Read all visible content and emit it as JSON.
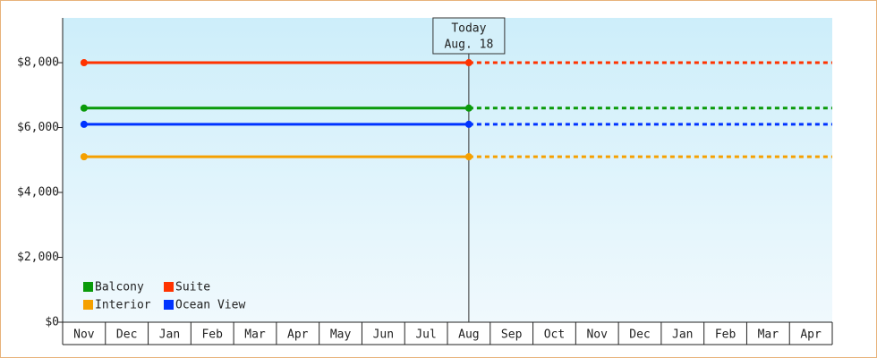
{
  "chart_data": {
    "type": "line",
    "categories": [
      "Nov",
      "Dec",
      "Jan",
      "Feb",
      "Mar",
      "Apr",
      "May",
      "Jun",
      "Jul",
      "Aug",
      "Sep",
      "Oct",
      "Nov",
      "Dec",
      "Jan",
      "Feb",
      "Mar",
      "Apr"
    ],
    "series": [
      {
        "name": "Balcony",
        "color": "#0a9a0a",
        "values": [
          6600,
          6600,
          6600,
          6600,
          6600,
          6600,
          6600,
          6600,
          6600,
          6600,
          null,
          null,
          null,
          null,
          null,
          null,
          null,
          null
        ]
      },
      {
        "name": "Suite",
        "color": "#ff3300",
        "values": [
          8000,
          8000,
          8000,
          8000,
          8000,
          8000,
          8000,
          8000,
          8000,
          8000,
          null,
          null,
          null,
          null,
          null,
          null,
          null,
          null
        ]
      },
      {
        "name": "Interior",
        "color": "#f5a000",
        "values": [
          5100,
          5100,
          5100,
          5100,
          5100,
          5100,
          5100,
          5100,
          5100,
          5100,
          null,
          null,
          null,
          null,
          null,
          null,
          null,
          null
        ]
      },
      {
        "name": "Ocean View",
        "color": "#0033ff",
        "values": [
          6100,
          6100,
          6100,
          6100,
          6100,
          6100,
          6100,
          6100,
          6100,
          6100,
          null,
          null,
          null,
          null,
          null,
          null,
          null,
          null
        ]
      }
    ],
    "today": [
      "Today",
      "Aug. 18"
    ],
    "ylim": [
      0,
      9380
    ],
    "yticks": [
      {
        "value": 0,
        "label": "$0"
      },
      {
        "value": 2000,
        "label": "$2,000"
      },
      {
        "value": 4000,
        "label": "$4,000"
      },
      {
        "value": 6000,
        "label": "$6,000"
      },
      {
        "value": 8000,
        "label": "$8,000"
      }
    ],
    "legend": "bottom-left"
  }
}
